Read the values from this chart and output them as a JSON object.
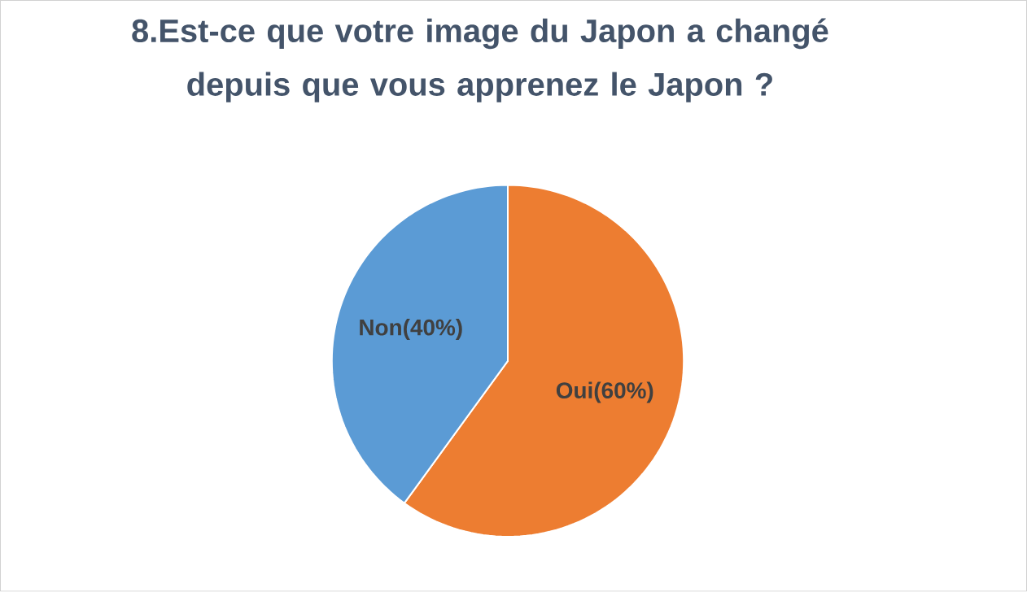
{
  "chart_data": {
    "type": "pie",
    "title": "8.Est-ce que votre image du Japon a changé depuis que vous apprenez le Japon ?",
    "categories": [
      "Oui(60%)",
      "Non(40%)"
    ],
    "values": [
      60,
      40
    ],
    "colors": [
      "#ed7d31",
      "#5b9bd5"
    ]
  }
}
